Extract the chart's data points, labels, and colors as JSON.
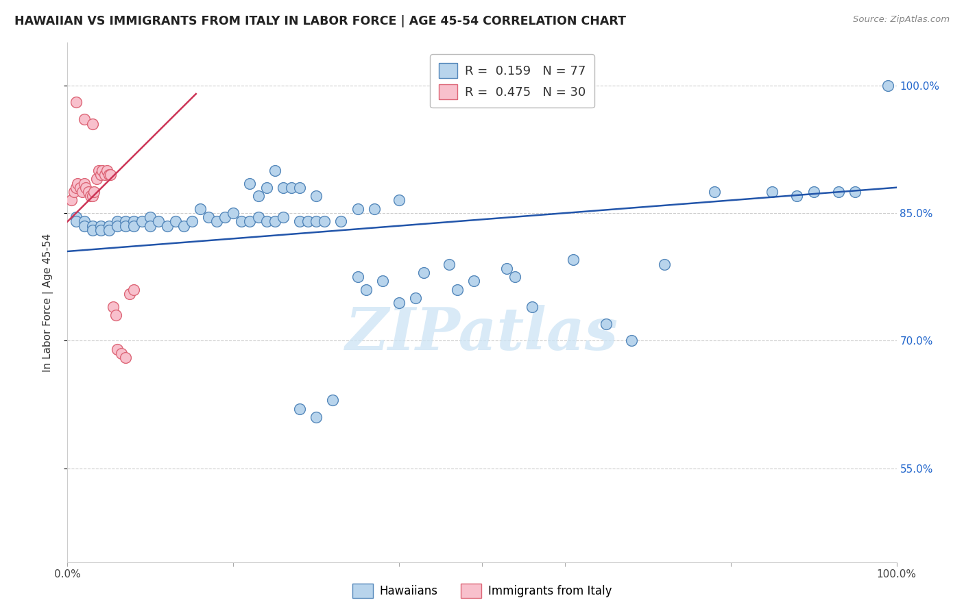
{
  "title": "HAWAIIAN VS IMMIGRANTS FROM ITALY IN LABOR FORCE | AGE 45-54 CORRELATION CHART",
  "source": "Source: ZipAtlas.com",
  "ylabel": "In Labor Force | Age 45-54",
  "blue_color": "#b8d4ec",
  "blue_edge": "#5588bb",
  "pink_color": "#f8c0cc",
  "pink_edge": "#dd6677",
  "blue_line_color": "#2255aa",
  "pink_line_color": "#cc3355",
  "watermark": "ZIPatlas",
  "xlim": [
    0.0,
    1.0
  ],
  "ylim": [
    0.44,
    1.05
  ],
  "ytick_vals": [
    0.55,
    0.7,
    0.85,
    1.0
  ],
  "ytick_labels": [
    "55.0%",
    "70.0%",
    "85.0%",
    "100.0%"
  ],
  "blue_line_x0": 0.0,
  "blue_line_x1": 1.0,
  "blue_line_y0": 0.805,
  "blue_line_y1": 0.88,
  "pink_line_x0": 0.0,
  "pink_line_x1": 0.155,
  "pink_line_y0": 0.84,
  "pink_line_y1": 0.99,
  "hawaiians_x": [
    0.01,
    0.01,
    0.02,
    0.02,
    0.03,
    0.03,
    0.04,
    0.04,
    0.05,
    0.05,
    0.06,
    0.06,
    0.07,
    0.07,
    0.08,
    0.08,
    0.09,
    0.1,
    0.1,
    0.11,
    0.12,
    0.13,
    0.14,
    0.15,
    0.16,
    0.17,
    0.18,
    0.19,
    0.2,
    0.21,
    0.22,
    0.23,
    0.24,
    0.25,
    0.26,
    0.28,
    0.29,
    0.3,
    0.31,
    0.33,
    0.35,
    0.37,
    0.4,
    0.43,
    0.46,
    0.47,
    0.49,
    0.53,
    0.54,
    0.56,
    0.61,
    0.65,
    0.68,
    0.72,
    0.78,
    0.85,
    0.88,
    0.9,
    0.93,
    0.95,
    0.99,
    0.35,
    0.36,
    0.38,
    0.4,
    0.42,
    0.28,
    0.3,
    0.32,
    0.22,
    0.23,
    0.24,
    0.25,
    0.26,
    0.27,
    0.28,
    0.3
  ],
  "hawaiians_y": [
    0.845,
    0.84,
    0.84,
    0.835,
    0.835,
    0.83,
    0.835,
    0.83,
    0.835,
    0.83,
    0.84,
    0.835,
    0.84,
    0.835,
    0.84,
    0.835,
    0.84,
    0.845,
    0.835,
    0.84,
    0.835,
    0.84,
    0.835,
    0.84,
    0.855,
    0.845,
    0.84,
    0.845,
    0.85,
    0.84,
    0.84,
    0.845,
    0.84,
    0.84,
    0.845,
    0.84,
    0.84,
    0.84,
    0.84,
    0.84,
    0.855,
    0.855,
    0.865,
    0.78,
    0.79,
    0.76,
    0.77,
    0.785,
    0.775,
    0.74,
    0.795,
    0.72,
    0.7,
    0.79,
    0.875,
    0.875,
    0.87,
    0.875,
    0.875,
    0.875,
    1.0,
    0.775,
    0.76,
    0.77,
    0.745,
    0.75,
    0.62,
    0.61,
    0.63,
    0.885,
    0.87,
    0.88,
    0.9,
    0.88,
    0.88,
    0.88,
    0.87
  ],
  "italy_x": [
    0.005,
    0.008,
    0.01,
    0.012,
    0.015,
    0.018,
    0.02,
    0.022,
    0.025,
    0.028,
    0.03,
    0.032,
    0.035,
    0.038,
    0.04,
    0.042,
    0.045,
    0.048,
    0.05,
    0.052,
    0.055,
    0.058,
    0.06,
    0.065,
    0.07,
    0.075,
    0.08,
    0.01,
    0.02,
    0.03
  ],
  "italy_y": [
    0.865,
    0.875,
    0.88,
    0.885,
    0.88,
    0.875,
    0.885,
    0.88,
    0.875,
    0.87,
    0.87,
    0.875,
    0.89,
    0.9,
    0.895,
    0.9,
    0.895,
    0.9,
    0.895,
    0.895,
    0.74,
    0.73,
    0.69,
    0.685,
    0.68,
    0.755,
    0.76,
    0.98,
    0.96,
    0.955
  ]
}
